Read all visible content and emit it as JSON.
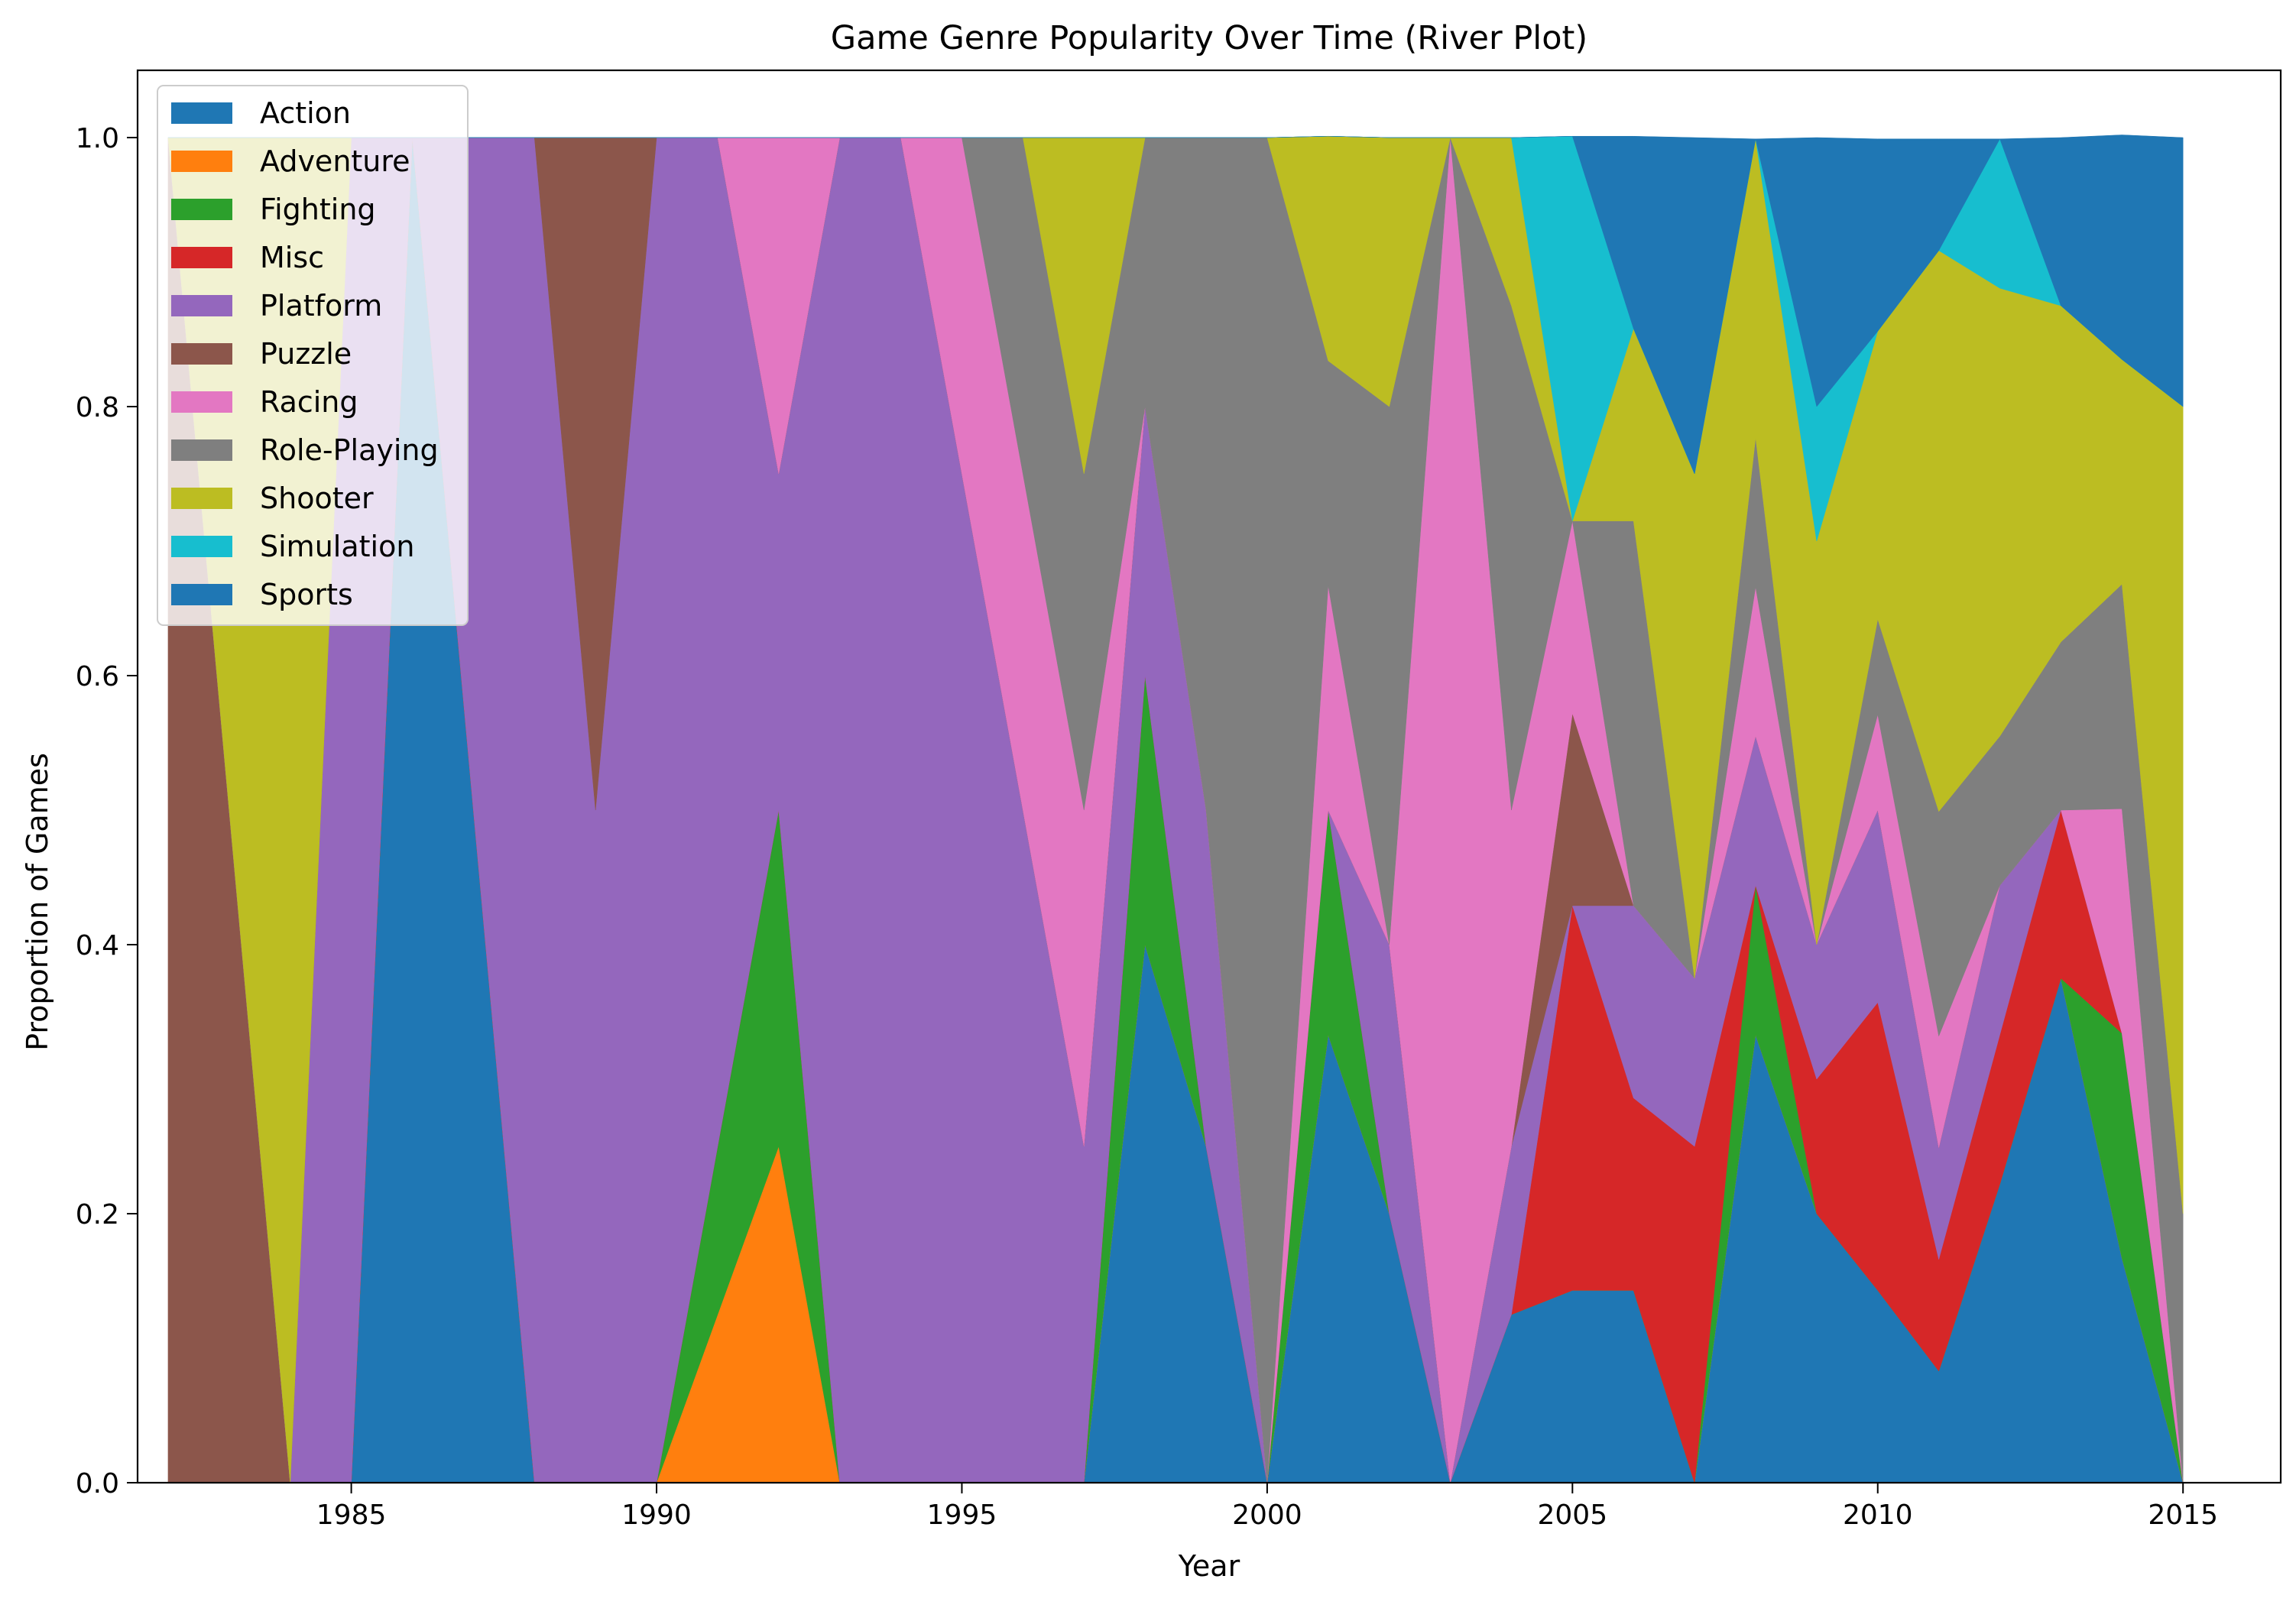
{
  "chart_data": {
    "type": "area",
    "stacked": true,
    "normalized": true,
    "title": "Game Genre Popularity Over Time (River Plot)",
    "xlabel": "Year",
    "ylabel": "Proportion of Games",
    "xlim": [
      1981.5,
      2016.6
    ],
    "ylim": [
      0.0,
      1.05
    ],
    "xticks": [
      1985,
      1990,
      1995,
      2000,
      2005,
      2010,
      2015
    ],
    "yticks": [
      0.0,
      0.2,
      0.4,
      0.6,
      0.8,
      1.0
    ],
    "legend_position": "upper-left",
    "grid": false,
    "x": [
      1982,
      1983,
      1984,
      1985,
      1986,
      1987,
      1988,
      1989,
      1990,
      1991,
      1992,
      1993,
      1994,
      1995,
      1996,
      1997,
      1998,
      1999,
      2000,
      2001,
      2002,
      2003,
      2004,
      2005,
      2006,
      2007,
      2008,
      2009,
      2010,
      2011,
      2012,
      2013,
      2014,
      2015
    ],
    "series": [
      {
        "name": "Action",
        "color": "#1f77b4",
        "values": [
          0,
          0,
          0,
          0,
          1,
          0.5,
          0,
          0,
          0,
          0,
          0,
          0,
          0,
          0,
          0,
          0,
          0.4,
          0.25,
          0,
          0.333,
          0.2,
          0,
          0.125,
          0.143,
          0.143,
          0,
          0.333,
          0.2,
          0.143,
          0.083,
          0.222,
          0.375,
          0.167,
          0
        ]
      },
      {
        "name": "Adventure",
        "color": "#ff7f0e",
        "values": [
          0,
          0,
          0,
          0,
          0,
          0,
          0,
          0,
          0,
          0.125,
          0.25,
          0,
          0,
          0,
          0,
          0,
          0,
          0,
          0,
          0,
          0,
          0,
          0,
          0,
          0,
          0,
          0,
          0,
          0,
          0,
          0,
          0,
          0,
          0
        ]
      },
      {
        "name": "Fighting",
        "color": "#2ca02c",
        "values": [
          0,
          0,
          0,
          0,
          0,
          0,
          0,
          0,
          0,
          0.125,
          0.25,
          0,
          0,
          0,
          0,
          0,
          0.2,
          0,
          0,
          0.167,
          0,
          0,
          0,
          0,
          0,
          0,
          0.111,
          0,
          0,
          0,
          0,
          0,
          0.167,
          0
        ]
      },
      {
        "name": "Misc",
        "color": "#d62728",
        "values": [
          0,
          0,
          0,
          0,
          0,
          0,
          0,
          0,
          0,
          0,
          0,
          0,
          0,
          0,
          0,
          0,
          0,
          0,
          0,
          0,
          0,
          0,
          0,
          0.286,
          0.143,
          0.25,
          0,
          0.1,
          0.214,
          0.083,
          0.111,
          0.125,
          0,
          0
        ]
      },
      {
        "name": "Platform",
        "color": "#9467bd",
        "values": [
          0,
          0,
          0,
          1,
          0,
          0.5,
          1,
          0.5,
          1,
          0.75,
          0.25,
          1,
          1,
          0.75,
          0.5,
          0.25,
          0.2,
          0.25,
          0,
          0,
          0.2,
          0,
          0.125,
          0,
          0.143,
          0.125,
          0.111,
          0.1,
          0.143,
          0.083,
          0.111,
          0,
          0,
          0
        ]
      },
      {
        "name": "Puzzle",
        "color": "#8c564b",
        "values": [
          1,
          0.5,
          0,
          0,
          0,
          0,
          0,
          0.5,
          0,
          0,
          0,
          0,
          0,
          0,
          0,
          0,
          0,
          0,
          0,
          0,
          0,
          0,
          0,
          0.143,
          0,
          0,
          0,
          0,
          0,
          0,
          0,
          0,
          0,
          0
        ]
      },
      {
        "name": "Racing",
        "color": "#e377c2",
        "values": [
          0,
          0,
          0,
          0,
          0,
          0,
          0,
          0,
          0,
          0,
          0.25,
          0,
          0,
          0.25,
          0.25,
          0.25,
          0,
          0,
          0,
          0.167,
          0,
          1,
          0.25,
          0.143,
          0,
          0,
          0.111,
          0,
          0.071,
          0.083,
          0,
          0,
          0.167,
          0
        ]
      },
      {
        "name": "Role-Playing",
        "color": "#7f7f7f",
        "values": [
          0,
          0,
          0,
          0,
          0,
          0,
          0,
          0,
          0,
          0,
          0,
          0,
          0,
          0,
          0.25,
          0.25,
          0.2,
          0.5,
          1,
          0.167,
          0.4,
          0,
          0.375,
          0,
          0.286,
          0,
          0.111,
          0,
          0.071,
          0.167,
          0.111,
          0.125,
          0.167,
          0.2
        ]
      },
      {
        "name": "Shooter",
        "color": "#bcbd22",
        "values": [
          0,
          0.5,
          1,
          0,
          0,
          0,
          0,
          0,
          0,
          0,
          0,
          0,
          0,
          0,
          0,
          0.25,
          0,
          0,
          0,
          0.167,
          0.2,
          0,
          0.125,
          0,
          0.143,
          0.375,
          0.222,
          0.3,
          0.214,
          0.417,
          0.333,
          0.25,
          0.167,
          0.6
        ]
      },
      {
        "name": "Simulation",
        "color": "#17becf",
        "values": [
          0,
          0,
          0,
          0,
          0,
          0,
          0,
          0,
          0,
          0,
          0,
          0,
          0,
          0,
          0,
          0,
          0,
          0,
          0,
          0,
          0,
          0,
          0,
          0.286,
          0,
          0,
          0,
          0.1,
          0,
          0,
          0.111,
          0,
          0,
          0
        ]
      },
      {
        "name": "Sports",
        "color": "#1f77b4",
        "values": [
          0,
          0,
          0,
          0,
          0,
          0,
          0,
          0,
          0,
          0,
          0,
          0,
          0,
          0,
          0,
          0,
          0,
          0,
          0,
          0,
          0,
          0,
          0,
          0,
          0.143,
          0.25,
          0,
          0.2,
          0.143,
          0.083,
          0,
          0.125,
          0.167,
          0.2
        ]
      }
    ]
  }
}
